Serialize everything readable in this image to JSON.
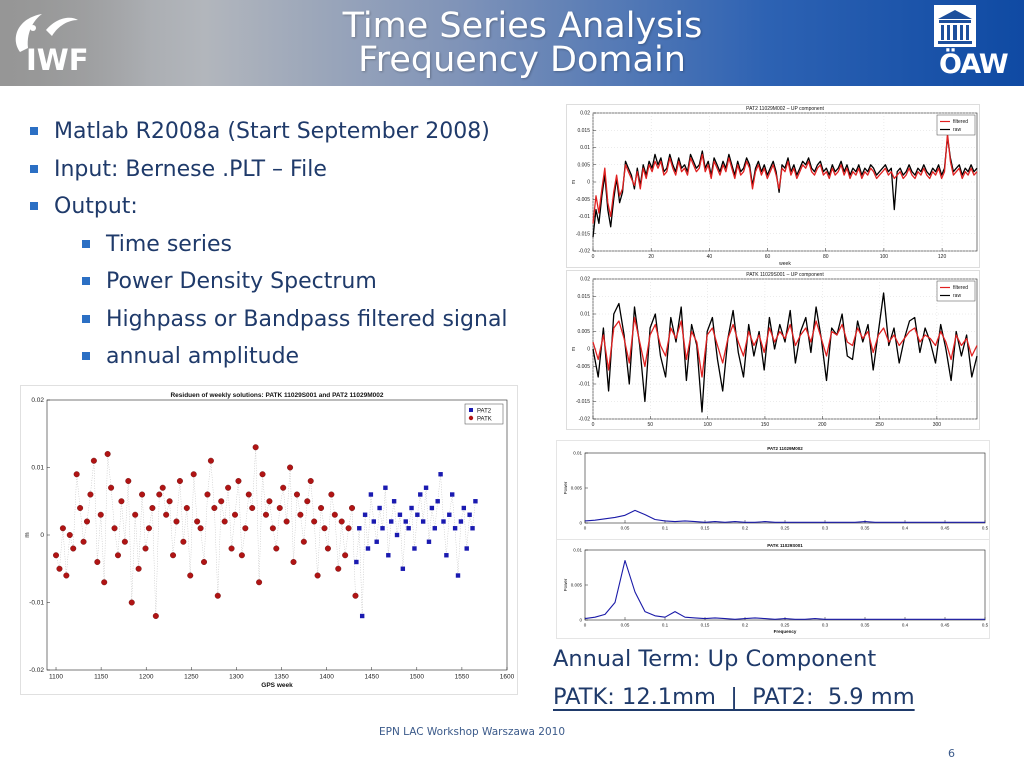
{
  "header": {
    "logo_left": "IWF",
    "title_line1": "Time Series Analysis",
    "title_line2": "Frequency Domain",
    "logo_right": "ÖAW"
  },
  "bullets": [
    {
      "text": "Matlab R2008a (Start September 2008)"
    },
    {
      "text": "Input: Bernese .PLT – File"
    },
    {
      "text": "Output:"
    },
    {
      "text": "Time series"
    },
    {
      "text": "Power Density Spectrum"
    },
    {
      "text": "Highpass or Bandpass filtered signal"
    },
    {
      "text": "annual amplitude"
    }
  ],
  "annual_term": "Annual Term: Up Component",
  "amplitudes": "PATK: 12.1mm  |  PAT2:  5.9 mm",
  "footer": "EPN LAC Workshop Warszawa 2010",
  "page_number": "6",
  "chart_data": [
    {
      "id": "residuals",
      "type": "scatter",
      "title": "Residuen of weekly solutions: PATK 11029S001 and PAT2 11029M002",
      "xlabel": "GPS week",
      "ylabel": "m",
      "xlim": [
        1090,
        1600
      ],
      "ylim": [
        -0.02,
        0.02
      ],
      "xticks": [
        1100,
        1150,
        1200,
        1250,
        1300,
        1350,
        1400,
        1450,
        1500,
        1550,
        1600
      ],
      "yticks": [
        0.02,
        0.01,
        0,
        -0.01,
        -0.02
      ],
      "ytick_labels": [
        "0.02",
        "0.01",
        "0",
        "-0.01",
        "-0.02"
      ],
      "legend": [
        "PAT2",
        "PATK"
      ],
      "legend_position": "top-right",
      "colors": {
        "PAT2": "#1a1ab0",
        "PATK": "#b01414"
      },
      "series": [
        {
          "name": "PATK",
          "x_range": [
            1100,
            1432
          ],
          "y": [
            -0.003,
            -0.005,
            0.001,
            -0.006,
            0.0,
            -0.002,
            0.009,
            0.004,
            -0.001,
            0.002,
            0.006,
            0.011,
            -0.004,
            0.003,
            -0.007,
            0.012,
            0.007,
            0.001,
            -0.003,
            0.005,
            -0.001,
            0.008,
            -0.01,
            0.003,
            -0.005,
            0.006,
            -0.002,
            0.001,
            0.004,
            -0.012,
            0.006,
            0.007,
            0.003,
            0.005,
            -0.003,
            0.002,
            0.008,
            -0.001,
            0.004,
            -0.006,
            0.009,
            0.002,
            0.001,
            -0.004,
            0.006,
            0.011,
            0.004,
            -0.009,
            0.005,
            0.002,
            0.007,
            -0.002,
            0.003,
            0.008,
            -0.003,
            0.001,
            0.006,
            0.004,
            0.013,
            -0.007,
            0.009,
            0.003,
            0.005,
            0.001,
            -0.002,
            0.004,
            0.007,
            0.002,
            0.01,
            -0.004,
            0.006,
            0.003,
            -0.001,
            0.005,
            0.008,
            0.002,
            -0.006,
            0.004,
            0.001,
            -0.002,
            0.006,
            0.003,
            -0.005,
            0.002,
            -0.003,
            0.001,
            0.004,
            -0.009
          ]
        },
        {
          "name": "PAT2",
          "x_range": [
            1433,
            1565
          ],
          "y": [
            -0.004,
            0.001,
            -0.012,
            0.003,
            -0.002,
            0.006,
            0.002,
            -0.001,
            0.004,
            0.001,
            0.007,
            -0.003,
            0.002,
            0.005,
            0.0,
            0.003,
            -0.005,
            0.002,
            0.001,
            0.004,
            -0.002,
            0.003,
            0.006,
            0.002,
            0.007,
            -0.001,
            0.004,
            0.001,
            0.005,
            0.009,
            0.002,
            -0.003,
            0.003,
            0.006,
            0.001,
            -0.006,
            0.002,
            0.004,
            -0.002,
            0.003,
            0.001,
            0.005
          ]
        }
      ]
    },
    {
      "id": "pat2-ts",
      "type": "line",
      "title": "PAT2 11029M002 – UP component",
      "xlabel": "week",
      "ylabel": "m",
      "xlim": [
        0,
        132
      ],
      "ylim": [
        -0.02,
        0.02
      ],
      "xticks": [
        0,
        20,
        40,
        60,
        80,
        100,
        120
      ],
      "yticks": [
        0.02,
        0.015,
        0.01,
        0.005,
        0,
        -0.005,
        -0.01,
        -0.015,
        -0.02
      ],
      "ytick_labels": [
        "0.02",
        "0.015",
        "0.01",
        "0.005",
        "0",
        "-0.005",
        "-0.01",
        "-0.015",
        "-0.02"
      ],
      "legend": [
        "filtered",
        "raw"
      ],
      "legend_position": "top-right",
      "colors": {
        "filtered": "#e02020",
        "raw": "#000000"
      },
      "series": [
        {
          "name": "filtered",
          "values": [
            -0.012,
            -0.004,
            -0.009,
            -0.002,
            0.004,
            -0.006,
            -0.01,
            -0.003,
            0.002,
            -0.004,
            -0.002,
            0.005,
            0.003,
            0.001,
            -0.001,
            0.003,
            -0.002,
            0.004,
            0.001,
            0.005,
            0.003,
            0.006,
            0.004,
            0.006,
            0.002,
            0.003,
            0.007,
            0.004,
            0.002,
            0.006,
            0.003,
            0.004,
            0.002,
            0.007,
            0.005,
            0.003,
            0.004,
            0.008,
            0.003,
            0.005,
            0.001,
            0.006,
            0.004,
            0.002,
            0.005,
            0.003,
            0.007,
            0.004,
            0.001,
            0.005,
            0.002,
            0.003,
            0.006,
            0.004,
            -0.002,
            0.003,
            0.005,
            0.002,
            0.004,
            0.001,
            0.003,
            0.005,
            0.002,
            -0.002,
            0.004,
            0.003,
            0.006,
            0.002,
            0.004,
            0.001,
            0.003,
            0.005,
            0.004,
            0.006,
            0.003,
            0.002,
            0.004,
            0.005,
            0.002,
            0.003,
            0.001,
            0.004,
            0.002,
            0.003,
            0.005,
            0.002,
            0.004,
            0.001,
            0.003,
            0.002,
            0.004,
            0.001,
            0.003,
            0.002,
            0.004,
            0.003,
            0.001,
            0.002,
            0.003,
            0.004,
            0.002,
            0.003,
            0.001,
            0.002,
            0.003,
            0.001,
            0.002,
            0.004,
            0.002,
            0.001,
            0.003,
            0.002,
            0.004,
            0.002,
            0.001,
            0.003,
            0.002,
            0.004,
            0.001,
            0.003,
            0.014,
            0.006,
            0.002,
            0.003,
            0.004,
            0.001,
            0.003,
            0.002,
            0.004,
            0.002,
            0.003
          ]
        },
        {
          "name": "raw",
          "values": [
            -0.016,
            -0.008,
            -0.012,
            -0.004,
            0.002,
            -0.008,
            -0.013,
            -0.005,
            0.001,
            -0.006,
            -0.003,
            0.006,
            0.004,
            0.002,
            -0.002,
            0.004,
            -0.001,
            0.005,
            0.002,
            0.006,
            0.004,
            0.008,
            0.005,
            0.007,
            0.003,
            0.004,
            0.008,
            0.005,
            0.003,
            0.007,
            0.004,
            0.005,
            0.003,
            0.008,
            0.006,
            0.004,
            0.005,
            0.009,
            0.004,
            0.006,
            0.002,
            0.007,
            0.005,
            0.003,
            0.006,
            0.004,
            0.008,
            0.005,
            0.002,
            0.006,
            0.003,
            0.004,
            0.007,
            0.005,
            -0.001,
            0.004,
            0.006,
            0.003,
            0.005,
            0.002,
            0.004,
            0.006,
            0.003,
            -0.003,
            0.005,
            0.004,
            0.007,
            0.003,
            0.005,
            0.002,
            0.004,
            0.006,
            0.005,
            0.007,
            0.004,
            0.003,
            0.005,
            0.006,
            0.003,
            0.004,
            0.002,
            0.005,
            0.003,
            0.004,
            0.006,
            0.003,
            0.005,
            0.002,
            0.004,
            0.003,
            0.005,
            0.002,
            0.004,
            0.003,
            0.005,
            0.004,
            0.002,
            0.003,
            0.004,
            0.005,
            0.003,
            0.004,
            -0.008,
            0.003,
            0.004,
            0.002,
            0.003,
            0.005,
            0.003,
            0.002,
            0.004,
            0.003,
            0.005,
            0.003,
            0.002,
            0.004,
            0.003,
            0.005,
            0.002,
            0.004,
            0.013,
            0.007,
            0.003,
            0.004,
            0.005,
            0.002,
            0.004,
            0.003,
            0.005,
            0.003,
            0.004
          ]
        }
      ]
    },
    {
      "id": "patk-ts",
      "type": "line",
      "title": "PATK 11029S001 – UP component",
      "xlabel": "weeks",
      "ylabel": "m",
      "xlim": [
        0,
        335
      ],
      "ylim": [
        -0.02,
        0.02
      ],
      "xticks": [
        0,
        50,
        100,
        150,
        200,
        250,
        300
      ],
      "yticks": [
        0.02,
        0.015,
        0.01,
        0.005,
        0,
        -0.005,
        -0.01,
        -0.015,
        -0.02
      ],
      "ytick_labels": [
        "0.02",
        "0.015",
        "0.01",
        "0.005",
        "0",
        "-0.005",
        "-0.01",
        "-0.015",
        "-0.02"
      ],
      "legend": [
        "filtered",
        "raw"
      ],
      "legend_position": "top-right",
      "colors": {
        "filtered": "#e02020",
        "raw": "#000000"
      },
      "series": [
        {
          "name": "filtered",
          "values": [
            0.002,
            -0.003,
            0.004,
            -0.006,
            0.006,
            0.008,
            0.003,
            -0.004,
            0.009,
            0.002,
            -0.005,
            0.004,
            0.007,
            0.001,
            -0.002,
            0.006,
            0.003,
            0.008,
            -0.003,
            0.005,
            0.002,
            -0.008,
            0.004,
            0.006,
            0.001,
            -0.004,
            0.003,
            0.007,
            0.002,
            -0.002,
            0.005,
            0.001,
            0.004,
            -0.001,
            0.006,
            0.002,
            0.005,
            0.003,
            0.007,
            0.001,
            0.004,
            0.006,
            0.002,
            0.008,
            0.003,
            -0.002,
            0.005,
            0.004,
            0.007,
            0.002,
            0.001,
            0.006,
            0.003,
            0.005,
            -0.001,
            0.004,
            0.006,
            0.002,
            0.004,
            0.001,
            0.003,
            0.005,
            0.006,
            0.002,
            0.004,
            0.003,
            0.001,
            0.005,
            0.002,
            -0.003,
            0.004,
            0.001,
            0.003,
            -0.002,
            0.001
          ]
        },
        {
          "name": "raw",
          "values": [
            0.0,
            -0.008,
            0.006,
            -0.012,
            0.01,
            0.013,
            0.004,
            -0.01,
            0.012,
            0.001,
            -0.015,
            0.006,
            0.01,
            -0.002,
            -0.008,
            0.009,
            0.002,
            0.012,
            -0.009,
            0.007,
            0.001,
            -0.018,
            0.005,
            0.009,
            -0.003,
            -0.012,
            0.003,
            0.011,
            -0.001,
            -0.008,
            0.007,
            -0.002,
            0.005,
            -0.006,
            0.009,
            0.0,
            0.007,
            0.002,
            0.011,
            -0.004,
            0.005,
            0.009,
            -0.001,
            0.012,
            0.003,
            -0.009,
            0.006,
            0.004,
            0.01,
            -0.002,
            -0.003,
            0.008,
            0.002,
            0.007,
            -0.006,
            0.005,
            0.016,
            0.001,
            0.006,
            -0.004,
            0.003,
            0.008,
            0.009,
            -0.001,
            0.006,
            0.002,
            -0.004,
            0.007,
            0.0,
            -0.009,
            0.005,
            -0.002,
            0.004,
            -0.008,
            -0.002
          ]
        }
      ]
    },
    {
      "id": "pat2-psd",
      "type": "line",
      "title": "PAT2 11029M002",
      "xlabel": "",
      "ylabel": "Power",
      "xlim": [
        0,
        0.5
      ],
      "ylim": [
        0,
        0.01
      ],
      "xticks": [
        0,
        0.05,
        0.1,
        0.15,
        0.2,
        0.25,
        0.3,
        0.35,
        0.4,
        0.45,
        0.5
      ],
      "yticks": [
        0.01,
        0.005,
        0
      ],
      "ytick_labels": [
        "0.01",
        "0.005",
        "0"
      ],
      "colors": {
        "line": "#1a1aa8"
      },
      "series": [
        {
          "values": [
            0.0003,
            0.0004,
            0.0006,
            0.0008,
            0.0011,
            0.0018,
            0.0012,
            0.0005,
            0.0003,
            0.0002,
            0.0003,
            0.0002,
            0.0001,
            0.0002,
            0.0001,
            0.0002,
            0.0001,
            0.0001,
            0.0002,
            0.0001,
            0.0001,
            0.0001,
            0.0001,
            0.0001,
            0.0001,
            0.0001,
            0.0001,
            0.0001,
            0.0002,
            0.0001,
            0.0001,
            0.0001,
            0.0001,
            0.0001,
            0.0001,
            0.0001,
            0.0001,
            0.0001,
            0.0001,
            0.0001,
            0.0001
          ]
        }
      ]
    },
    {
      "id": "patk-psd",
      "type": "line",
      "title": "PATK 11029S001",
      "xlabel": "Frequency",
      "ylabel": "Power",
      "xlim": [
        0,
        0.5
      ],
      "ylim": [
        0,
        0.01
      ],
      "xticks": [
        0,
        0.05,
        0.1,
        0.15,
        0.2,
        0.25,
        0.3,
        0.35,
        0.4,
        0.45,
        0.5
      ],
      "yticks": [
        0.01,
        0.005,
        0
      ],
      "ytick_labels": [
        "0.01",
        "0.005",
        "0"
      ],
      "colors": {
        "line": "#1a1aa8"
      },
      "series": [
        {
          "values": [
            0.0002,
            0.0004,
            0.0008,
            0.0025,
            0.0085,
            0.004,
            0.0012,
            0.0006,
            0.0004,
            0.0012,
            0.0004,
            0.0003,
            0.0002,
            0.0003,
            0.0002,
            0.0001,
            0.0002,
            0.0003,
            0.0002,
            0.0001,
            0.0002,
            0.0001,
            0.0001,
            0.0002,
            0.0001,
            0.0001,
            0.0001,
            0.0001,
            0.0001,
            0.0001,
            0.0001,
            0.0001,
            0.0001,
            0.0001,
            0.0001,
            0.0001,
            0.0001,
            0.0001,
            0.0001,
            0.0001,
            0.0001
          ]
        }
      ]
    }
  ]
}
